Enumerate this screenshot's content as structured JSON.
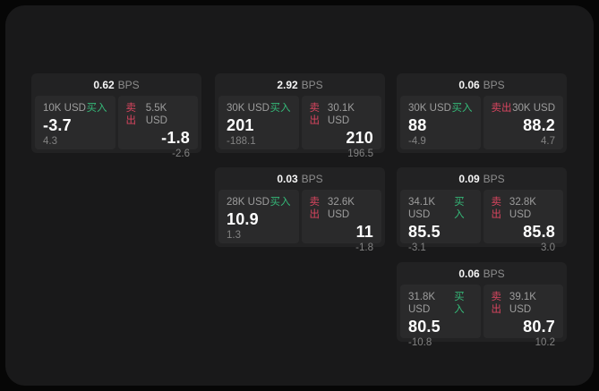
{
  "colors": {
    "backdrop": "#060606",
    "panel_background": "#19191a",
    "card_background": "#222223",
    "tile_background": "#2a2a2b",
    "buy_green": "#35b878",
    "sell_red": "#d8455f",
    "price_white": "#ffffff",
    "label_gray": "#9d9d9d"
  },
  "unit_label": "BPS",
  "buy_label": "买入",
  "sell_label": "卖出",
  "cards": [
    {
      "bps": "0.62",
      "unit": "BPS",
      "buy": {
        "amount": "10K USD",
        "side": "买入",
        "price": "-3.7",
        "change": "4.3"
      },
      "sell": {
        "side": "卖出",
        "amount": "5.5K USD",
        "price": "-1.8",
        "change": "-2.6"
      }
    },
    {
      "bps": "2.92",
      "unit": "BPS",
      "buy": {
        "amount": "30K USD",
        "side": "买入",
        "price": "201",
        "change": "-188.1"
      },
      "sell": {
        "side": "卖出",
        "amount": "30.1K USD",
        "price": "210",
        "change": "196.5"
      }
    },
    {
      "bps": "0.06",
      "unit": "BPS",
      "buy": {
        "amount": "30K USD",
        "side": "买入",
        "price": "88",
        "change": "-4.9"
      },
      "sell": {
        "side": "卖出",
        "amount": "30K USD",
        "price": "88.2",
        "change": "4.7"
      }
    },
    {
      "bps": "0.03",
      "unit": "BPS",
      "buy": {
        "amount": "28K USD",
        "side": "买入",
        "price": "10.9",
        "change": "1.3"
      },
      "sell": {
        "side": "卖出",
        "amount": "32.6K USD",
        "price": "11",
        "change": "-1.8"
      }
    },
    {
      "bps": "0.09",
      "unit": "BPS",
      "buy": {
        "amount": "34.1K USD",
        "side": "买入",
        "price": "85.5",
        "change": "-3.1"
      },
      "sell": {
        "side": "卖出",
        "amount": "32.8K USD",
        "price": "85.8",
        "change": "3.0"
      }
    },
    {
      "bps": "0.06",
      "unit": "BPS",
      "buy": {
        "amount": "31.8K USD",
        "side": "买入",
        "price": "80.5",
        "change": "-10.8"
      },
      "sell": {
        "side": "卖出",
        "amount": "39.1K USD",
        "price": "80.7",
        "change": "10.2"
      }
    }
  ]
}
